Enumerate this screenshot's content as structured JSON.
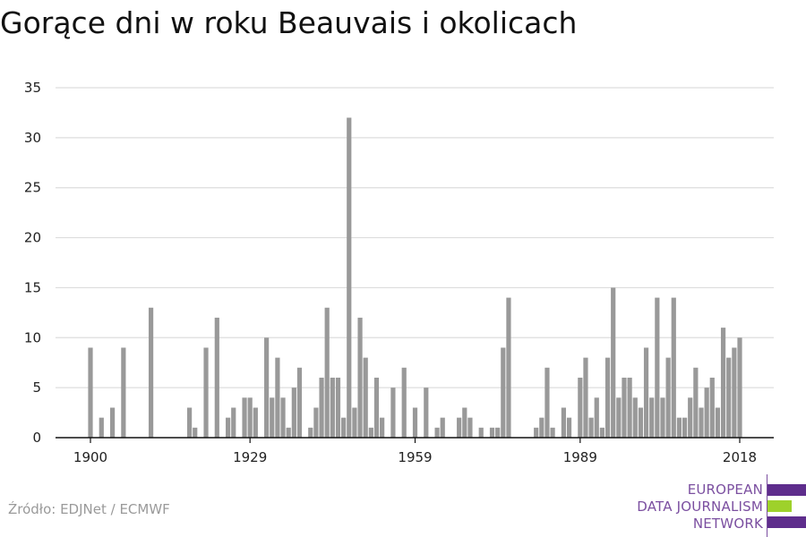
{
  "title": "Gorące dni w roku Beauvais i okolicach",
  "source": "Źródło: EDJNet / ECMWF",
  "logo": {
    "line1": "EUROPEAN",
    "line2": "DATA JOURNALISM",
    "line3": "NETWORK",
    "colors": {
      "purple": "#5e2d8c",
      "green": "#9ed12b"
    }
  },
  "colors": {
    "bar": "#999999",
    "grid": "#dddddd",
    "axis": "#111111",
    "text": "#222222"
  },
  "chart_data": {
    "type": "bar",
    "x": [
      1900,
      1901,
      1902,
      1903,
      1904,
      1905,
      1906,
      1907,
      1908,
      1909,
      1910,
      1911,
      1912,
      1913,
      1914,
      1915,
      1916,
      1917,
      1918,
      1919,
      1920,
      1921,
      1922,
      1923,
      1924,
      1925,
      1926,
      1927,
      1928,
      1929,
      1930,
      1931,
      1932,
      1933,
      1934,
      1935,
      1936,
      1937,
      1938,
      1939,
      1940,
      1941,
      1942,
      1943,
      1944,
      1945,
      1946,
      1947,
      1948,
      1949,
      1950,
      1951,
      1952,
      1953,
      1954,
      1955,
      1956,
      1957,
      1958,
      1959,
      1960,
      1961,
      1962,
      1963,
      1964,
      1965,
      1966,
      1967,
      1968,
      1969,
      1970,
      1971,
      1972,
      1973,
      1974,
      1975,
      1976,
      1977,
      1978,
      1979,
      1980,
      1981,
      1982,
      1983,
      1984,
      1985,
      1986,
      1987,
      1988,
      1989,
      1990,
      1991,
      1992,
      1993,
      1994,
      1995,
      1996,
      1997,
      1998,
      1999,
      2000,
      2001,
      2002,
      2003,
      2004,
      2005,
      2006,
      2007,
      2008,
      2009,
      2010,
      2011,
      2012,
      2013,
      2014,
      2015,
      2016,
      2017,
      2018
    ],
    "values": [
      9,
      0,
      2,
      0,
      3,
      0,
      9,
      0,
      0,
      0,
      0,
      13,
      0,
      0,
      0,
      0,
      0,
      0,
      3,
      1,
      0,
      9,
      0,
      12,
      0,
      2,
      3,
      0,
      4,
      4,
      3,
      0,
      10,
      4,
      8,
      4,
      1,
      5,
      7,
      0,
      1,
      3,
      6,
      13,
      6,
      6,
      2,
      32,
      3,
      12,
      8,
      1,
      6,
      2,
      0,
      5,
      0,
      7,
      0,
      3,
      0,
      5,
      0,
      1,
      2,
      0,
      0,
      2,
      3,
      2,
      0,
      1,
      0,
      1,
      1,
      9,
      14,
      0,
      0,
      0,
      0,
      1,
      2,
      7,
      1,
      0,
      3,
      2,
      0,
      6,
      8,
      2,
      4,
      1,
      8,
      15,
      4,
      6,
      6,
      4,
      3,
      9,
      4,
      14,
      4,
      8,
      14,
      2,
      2,
      4,
      7,
      3,
      5,
      6,
      3,
      11,
      8,
      9,
      10
    ],
    "xticks": [
      "1900",
      "1929",
      "1959",
      "1989",
      "2018"
    ],
    "yticks": [
      0,
      5,
      10,
      15,
      20,
      25,
      30,
      35
    ],
    "xlim": [
      1900,
      2018
    ],
    "ylim": [
      0,
      35
    ],
    "grid": true,
    "title": "Gorące dni w roku Beauvais i okolicach"
  }
}
